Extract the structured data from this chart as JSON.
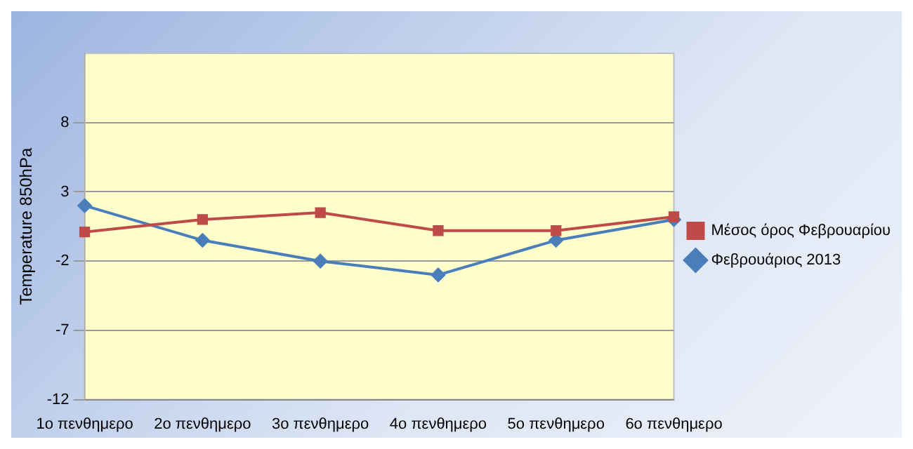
{
  "chart_data": {
    "type": "line",
    "ylabel": "Temperature 850hPa",
    "categories": [
      "1ο πενθημερο",
      "2ο πενθημερο",
      "3ο πενθημερο",
      "4ο πενθημερο",
      "5ο πενθημερο",
      "6ο πενθημερο"
    ],
    "series": [
      {
        "name": "Φεβρουάριος 2013",
        "color": "#4a7ebb",
        "marker": "diamond",
        "values": [
          2.0,
          -0.5,
          -2.0,
          -3.0,
          -0.5,
          1.0
        ]
      },
      {
        "name": "Μέσος όρος Φεβρουαρίου",
        "color": "#be4b48",
        "marker": "square",
        "values": [
          0.1,
          1.0,
          1.5,
          0.2,
          0.2,
          1.2
        ]
      }
    ],
    "ylim": [
      -12,
      13
    ],
    "yticks": [
      -12,
      -7,
      -2,
      3,
      8
    ],
    "grid": "y",
    "legend": "right",
    "line_style": "solid"
  }
}
